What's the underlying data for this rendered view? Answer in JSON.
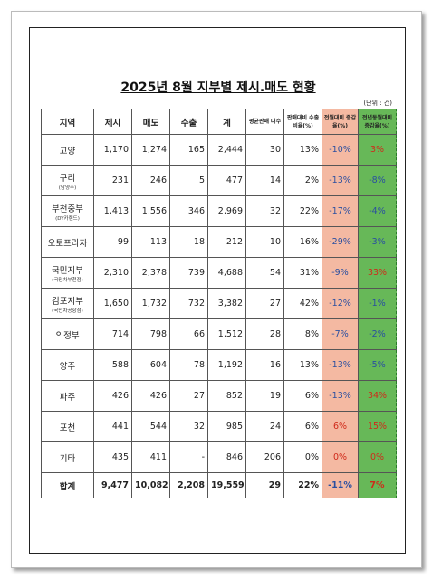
{
  "header": {
    "title": "2025년 8월 지부별 제시.매도 현황",
    "unit": "(단위 : 건)"
  },
  "table": {
    "columns": [
      "지역",
      "제시",
      "매도",
      "수출",
      "계",
      "평균판매 대수",
      "판매대비 수출비율(%)",
      "전월대비 증감율(%)",
      "전년동월대비 증감율(%)"
    ],
    "rows": [
      {
        "region": "고양",
        "cells": [
          "1,170",
          "1,274",
          "165",
          "2,444",
          "30",
          "13%",
          "-10%",
          "3%"
        ]
      },
      {
        "region": "구리",
        "note": "(남양주)",
        "cells": [
          "231",
          "246",
          "5",
          "477",
          "14",
          "2%",
          "-13%",
          "-8%"
        ]
      },
      {
        "region": "부천중부",
        "note": "(DY카랜드)",
        "cells": [
          "1,413",
          "1,556",
          "346",
          "2,969",
          "32",
          "22%",
          "-17%",
          "-4%"
        ]
      },
      {
        "region": "오토프라자",
        "cells": [
          "99",
          "113",
          "18",
          "212",
          "10",
          "16%",
          "-29%",
          "-3%"
        ]
      },
      {
        "region": "국민지부",
        "note": "(국민차부천점)",
        "cells": [
          "2,310",
          "2,378",
          "739",
          "4,688",
          "54",
          "31%",
          "-9%",
          "33%"
        ]
      },
      {
        "region": "김포지부",
        "note": "(국민차공항점)",
        "cells": [
          "1,650",
          "1,732",
          "732",
          "3,382",
          "27",
          "42%",
          "-12%",
          "-1%"
        ]
      },
      {
        "region": "의정부",
        "cells": [
          "714",
          "798",
          "66",
          "1,512",
          "28",
          "8%",
          "-7%",
          "-2%"
        ]
      },
      {
        "region": "양주",
        "cells": [
          "588",
          "604",
          "78",
          "1,192",
          "16",
          "13%",
          "-13%",
          "-5%"
        ]
      },
      {
        "region": "파주",
        "cells": [
          "426",
          "426",
          "27",
          "852",
          "19",
          "6%",
          "-13%",
          "34%"
        ]
      },
      {
        "region": "포천",
        "cells": [
          "441",
          "544",
          "32",
          "985",
          "24",
          "6%",
          "6%",
          "15%"
        ]
      },
      {
        "region": "기타",
        "cells": [
          "435",
          "411",
          "-",
          "846",
          "206",
          "0%",
          "0%",
          "0%"
        ]
      },
      {
        "region": "합계",
        "cells": [
          "9,477",
          "10,082",
          "2,208",
          "19,559",
          "29",
          "22%",
          "-11%",
          "7%"
        ]
      }
    ]
  }
}
